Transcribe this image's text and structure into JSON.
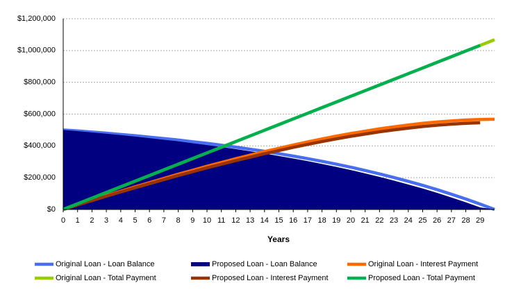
{
  "chart_data": {
    "type": "line",
    "x_label": "Years",
    "x": [
      0,
      1,
      2,
      3,
      4,
      5,
      6,
      7,
      8,
      9,
      10,
      11,
      12,
      13,
      14,
      15,
      16,
      17,
      18,
      19,
      20,
      21,
      22,
      23,
      24,
      25,
      26,
      27,
      28,
      29,
      30
    ],
    "xlim": [
      0,
      30
    ],
    "xticks": [
      0,
      1,
      2,
      3,
      4,
      5,
      6,
      7,
      8,
      9,
      10,
      11,
      12,
      13,
      14,
      15,
      16,
      17,
      18,
      19,
      20,
      21,
      22,
      23,
      24,
      25,
      26,
      27,
      28,
      29
    ],
    "ylim": [
      0,
      1200000
    ],
    "yticks": [
      {
        "value": 0,
        "label": "$0"
      },
      {
        "value": 200000,
        "label": "$200,000"
      },
      {
        "value": 400000,
        "label": "$400,000"
      },
      {
        "value": 600000,
        "label": "$600,000"
      },
      {
        "value": 800000,
        "label": "$800,000"
      },
      {
        "value": 1000000,
        "label": "$1,000,000"
      },
      {
        "value": 1200000,
        "label": "$1,200,000"
      }
    ],
    "grid": true,
    "legend": "bottom",
    "series": [
      {
        "name": "Original Loan - Loan Balance",
        "color": "#4a6ef0",
        "type": "line",
        "values": [
          500000,
          494000,
          487000,
          480000,
          472000,
          464000,
          455000,
          446000,
          437000,
          426000,
          416000,
          404000,
          392000,
          379000,
          366000,
          351000,
          336000,
          320000,
          303000,
          285000,
          266000,
          245000,
          224000,
          201000,
          177000,
          152000,
          125000,
          96000,
          66000,
          34000,
          0
        ]
      },
      {
        "name": "Proposed Loan - Loan Balance",
        "color": "#000080",
        "type": "area",
        "values": [
          500000,
          492900,
          484800,
          476800,
          467800,
          458700,
          448800,
          438800,
          428800,
          416900,
          405900,
          393100,
          380200,
          366400,
          352500,
          336800,
          321000,
          304300,
          286600,
          267900,
          248300,
          226800,
          205200,
          181800,
          157300,
          131900,
          104600,
          75400,
          45200,
          13000,
          0
        ]
      },
      {
        "name": "Original Loan - Interest Payment",
        "color": "#ff6a00",
        "type": "line",
        "values": [
          0,
          29600,
          58200,
          86800,
          114400,
          142000,
          168600,
          195200,
          221800,
          246400,
          272000,
          295600,
          319200,
          341800,
          364400,
          385000,
          405600,
          425200,
          443800,
          461400,
          478000,
          492600,
          507200,
          519800,
          531400,
          542000,
          550600,
          557200,
          562800,
          566400,
          568000
        ]
      },
      {
        "name": "Original Loan - Total Payment",
        "color": "#99cc00",
        "type": "line",
        "values": [
          0,
          35600,
          71200,
          106800,
          142400,
          178000,
          213600,
          249200,
          284800,
          320400,
          356000,
          391600,
          427200,
          462800,
          498400,
          534000,
          569600,
          605200,
          640800,
          676400,
          712000,
          747600,
          783200,
          818800,
          854400,
          890000,
          925600,
          961200,
          996800,
          1032400,
          1068000
        ]
      },
      {
        "name": "Proposed Loan - Interest Payment",
        "color": "#993300",
        "type": "line",
        "values": [
          0,
          28500,
          56000,
          83600,
          110200,
          136700,
          162400,
          188000,
          213600,
          237300,
          261900,
          284700,
          307400,
          329200,
          350900,
          370800,
          390600,
          409500,
          427400,
          444300,
          460300,
          474400,
          488400,
          500600,
          511700,
          521900,
          530200,
          536600,
          542000,
          545400,
          null
        ]
      },
      {
        "name": "Proposed Loan - Total Payment",
        "color": "#00b050",
        "type": "line",
        "values": [
          0,
          35600,
          71200,
          106800,
          142400,
          178000,
          213600,
          249200,
          284800,
          320400,
          356000,
          391600,
          427200,
          462800,
          498400,
          534000,
          569600,
          605200,
          640800,
          676400,
          712000,
          747600,
          783200,
          818800,
          854400,
          890000,
          925600,
          961200,
          996800,
          1032400,
          null
        ]
      }
    ]
  }
}
